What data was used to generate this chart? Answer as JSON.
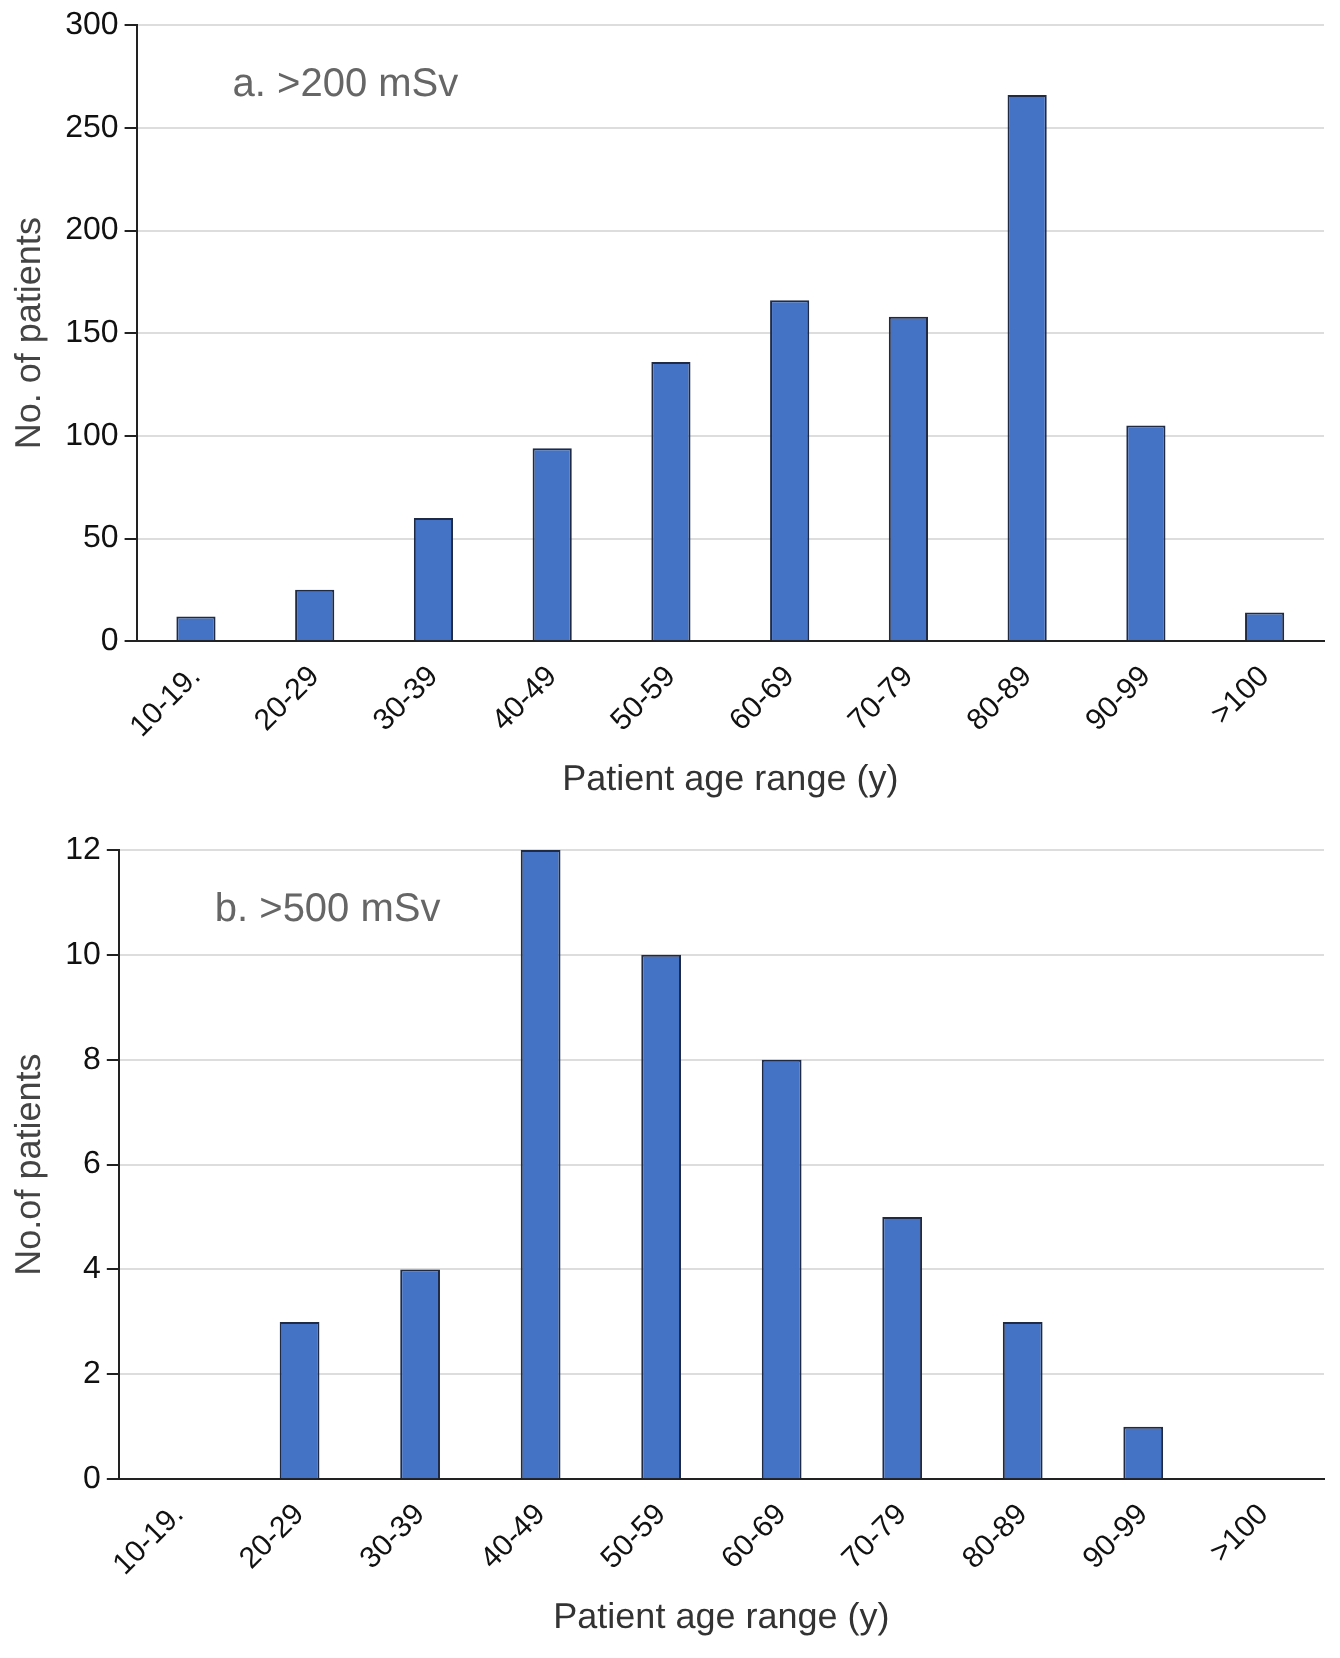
{
  "chart_data": [
    {
      "type": "bar",
      "categories": [
        "10-19.",
        "20-29",
        "30-39",
        "40-49",
        "50-59",
        "60-69",
        "70-79",
        "80-89",
        "90-99",
        ">100"
      ],
      "values": [
        12,
        25,
        60,
        94,
        136,
        166,
        158,
        266,
        105,
        14
      ],
      "color": "#4472c4",
      "ylim": [
        0,
        300
      ],
      "yticks": [
        0,
        50,
        100,
        150,
        200,
        250,
        300
      ],
      "grid": "y",
      "xlabel": "Patient age range (y)",
      "ylabel": "No. of patients",
      "annotations": [
        "a. >200 mSv"
      ]
    },
    {
      "type": "bar",
      "categories": [
        "10-19.",
        "20-29",
        "30-39",
        "40-49",
        "50-59",
        "60-69",
        "70-79",
        "80-89",
        "90-99",
        ">100"
      ],
      "values": [
        0,
        3,
        4,
        12,
        10,
        8,
        5,
        3,
        1,
        0
      ],
      "color": "#4472c4",
      "ylim": [
        0,
        12
      ],
      "yticks": [
        0,
        2,
        4,
        6,
        8,
        10,
        12
      ],
      "grid": "y",
      "xlabel": "Patient age range (y)",
      "ylabel": "No.of patients",
      "annotations": [
        "b. >500 mSv"
      ]
    }
  ]
}
